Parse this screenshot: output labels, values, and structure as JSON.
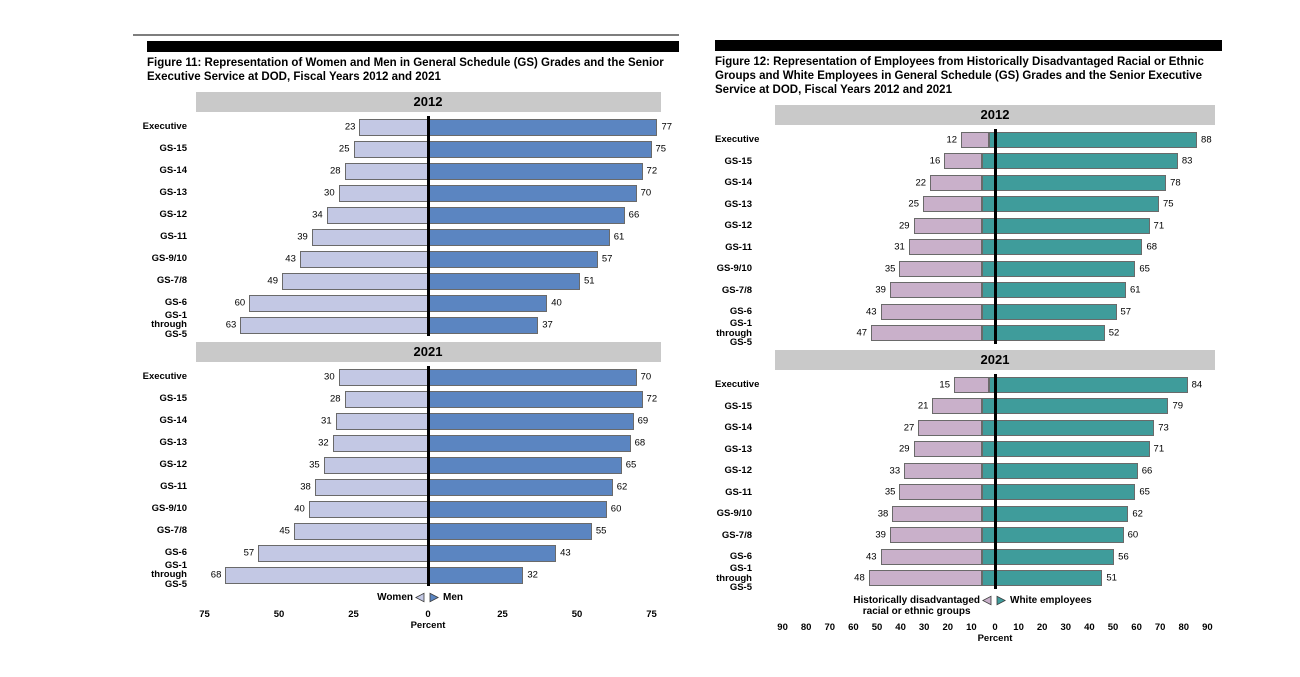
{
  "chart_data": [
    {
      "type": "bar",
      "variant": "diverging-population-pyramid",
      "title": "Figure 11: Representation of Women and Men in General Schedule (GS) Grades and the Senior Executive Service at DOD, Fiscal Years 2012 and 2021",
      "categories": [
        "Executive",
        "GS-15",
        "GS-14",
        "GS-13",
        "GS-12",
        "GS-11",
        "GS-9/10",
        "GS-7/8",
        "GS-6",
        "GS-1 through GS-5"
      ],
      "panels": [
        {
          "year": "2012",
          "series": [
            {
              "name": "Women",
              "side": "left",
              "values": [
                23,
                25,
                28,
                30,
                34,
                39,
                43,
                49,
                60,
                63
              ]
            },
            {
              "name": "Men",
              "side": "right",
              "values": [
                77,
                75,
                72,
                70,
                66,
                61,
                57,
                51,
                40,
                37
              ]
            }
          ]
        },
        {
          "year": "2021",
          "series": [
            {
              "name": "Women",
              "side": "left",
              "values": [
                30,
                28,
                31,
                32,
                35,
                38,
                40,
                45,
                57,
                68
              ]
            },
            {
              "name": "Men",
              "side": "right",
              "values": [
                70,
                72,
                69,
                68,
                65,
                62,
                60,
                55,
                43,
                32
              ]
            }
          ]
        }
      ],
      "legend": {
        "left_label": "Women",
        "left_label_line2": "",
        "right_label": "Men"
      },
      "axis": {
        "label": "Percent",
        "tick_labels": [
          "75",
          "50",
          "25",
          "0",
          "25",
          "50",
          "75"
        ],
        "tick_values": [
          -75,
          -50,
          -25,
          0,
          25,
          50,
          75
        ],
        "range": [
          -75,
          75
        ]
      },
      "colors": {
        "left_bar": "#c3c8e4",
        "right_bar": "#5b85c1",
        "bar_border": "#6a6a6a",
        "header_bg": "#c9c9c9",
        "axis_line": "#000000"
      }
    },
    {
      "type": "bar",
      "variant": "diverging-population-pyramid",
      "title": "Figure 12: Representation of Employees from Historically Disadvantaged Racial or Ethnic Groups and White Employees in General Schedule (GS) Grades and the Senior Executive Service at DOD, Fiscal Years 2012 and 2021",
      "categories": [
        "Executive",
        "GS-15",
        "GS-14",
        "GS-13",
        "GS-12",
        "GS-11",
        "GS-9/10",
        "GS-7/8",
        "GS-6",
        "GS-1 through GS-5"
      ],
      "panels": [
        {
          "year": "2012",
          "series": [
            {
              "name": "Historically disadvantaged racial or ethnic groups",
              "side": "left",
              "values": [
                12,
                16,
                22,
                25,
                29,
                31,
                35,
                39,
                43,
                47
              ]
            },
            {
              "name": "White employees",
              "side": "right",
              "values": [
                88,
                83,
                78,
                75,
                71,
                68,
                65,
                61,
                57,
                52
              ]
            }
          ]
        },
        {
          "year": "2021",
          "series": [
            {
              "name": "Historically disadvantaged racial or ethnic groups",
              "side": "left",
              "values": [
                15,
                21,
                27,
                29,
                33,
                35,
                38,
                39,
                43,
                48
              ]
            },
            {
              "name": "White employees",
              "side": "right",
              "values": [
                84,
                79,
                73,
                71,
                66,
                65,
                62,
                60,
                56,
                51
              ]
            }
          ]
        }
      ],
      "legend": {
        "left_label": "Historically disadvantaged",
        "left_label_line2": "racial or ethnic groups",
        "right_label": "White employees"
      },
      "axis": {
        "label": "Percent",
        "tick_labels": [
          "90",
          "80",
          "70",
          "60",
          "50",
          "40",
          "30",
          "20",
          "10",
          "0",
          "10",
          "20",
          "30",
          "40",
          "50",
          "60",
          "70",
          "80",
          "90"
        ],
        "tick_values": [
          -90,
          -80,
          -70,
          -60,
          -50,
          -40,
          -30,
          -20,
          -10,
          0,
          10,
          20,
          30,
          40,
          50,
          60,
          70,
          80,
          90
        ],
        "range": [
          -90,
          90
        ]
      },
      "colors": {
        "left_bar": "#c9b0ca",
        "right_bar": "#3f9c9b",
        "bar_border": "#6a6a6a",
        "header_bg": "#c9c9c9",
        "axis_line": "#000000"
      }
    }
  ]
}
